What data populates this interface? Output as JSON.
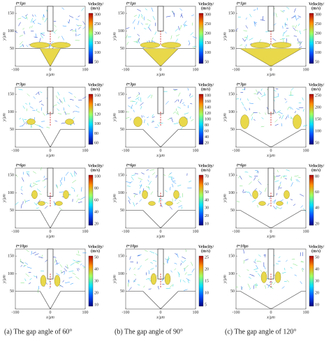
{
  "axes": {
    "x_label": "x/μm",
    "y_label": "y/μm",
    "x_ticks": [
      -100,
      0,
      100
    ],
    "y_ticks": [
      50,
      100,
      150
    ]
  },
  "colorbar_title": [
    "Velocity/",
    "(m/s)"
  ],
  "rows": [
    {
      "time": "t=1μs",
      "panels": [
        {
          "colorbar_ticks": [
            300,
            250,
            200,
            150,
            100,
            50
          ]
        },
        {
          "colorbar_ticks": [
            300,
            250,
            200,
            150,
            100,
            50
          ]
        },
        {
          "colorbar_ticks": [
            300,
            250,
            200,
            150,
            100,
            50
          ]
        }
      ]
    },
    {
      "time": "t=3μs",
      "panels": [
        {
          "colorbar_ticks": [
            160,
            140,
            120,
            100,
            80,
            60
          ]
        },
        {
          "colorbar_ticks": [
            180,
            160,
            140,
            120,
            100,
            80,
            60,
            40,
            20
          ]
        },
        {
          "colorbar_ticks": [
            250,
            200,
            150,
            100,
            50
          ]
        }
      ]
    },
    {
      "time": "t=6μs",
      "panels": [
        {
          "colorbar_ticks": [
            100,
            80,
            60,
            40,
            20
          ]
        },
        {
          "colorbar_ticks": [
            70,
            60,
            50,
            40,
            30,
            20,
            10
          ]
        },
        {
          "colorbar_ticks": [
            80,
            60,
            40,
            20
          ]
        }
      ]
    },
    {
      "time": "t=10μs",
      "panels": [
        {
          "colorbar_ticks": [
            50,
            40,
            30,
            20,
            10
          ]
        },
        {
          "colorbar_ticks": [
            25,
            20,
            15,
            10,
            5
          ]
        },
        {
          "colorbar_ticks": [
            50,
            40,
            30,
            20,
            10
          ]
        }
      ]
    }
  ],
  "captions": [
    "(a)  The gap angle of 60°",
    "(b)  The gap angle of 90°",
    "(c)  The gap angle of 120°"
  ]
}
